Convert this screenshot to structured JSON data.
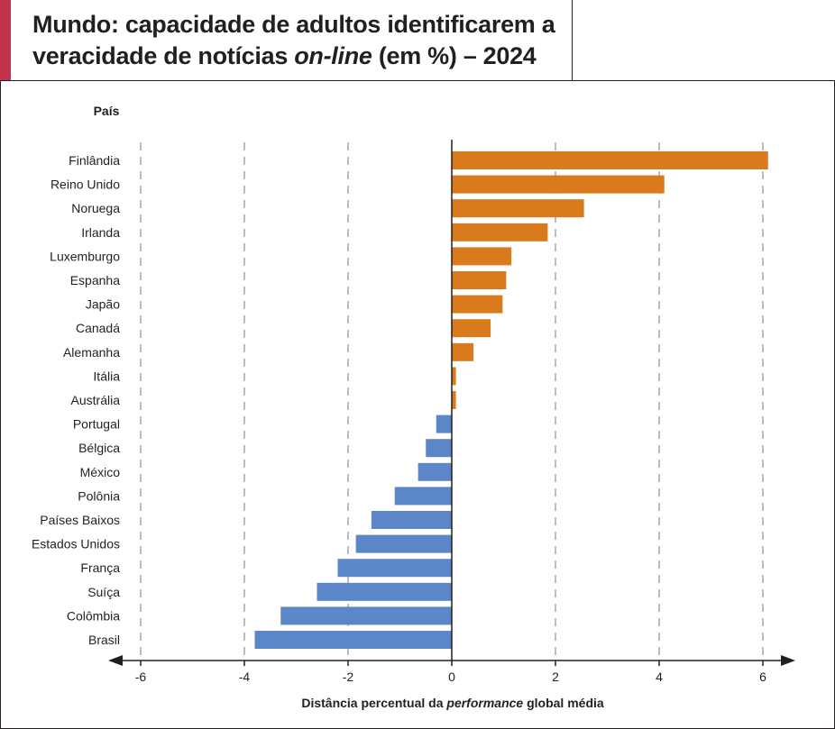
{
  "title": {
    "line1": "Mundo: capacidade de adultos identificarem a",
    "line2_pre": "veracidade de notícias ",
    "line2_em": "on-line",
    "line2_post": " (em %) – 2024"
  },
  "colors": {
    "positive": "#d97a1c",
    "negative": "#5b86c7",
    "accent": "#c2334d",
    "grid": "#bdbdbd",
    "axis": "#231f20"
  },
  "chart_data": {
    "type": "bar",
    "orientation": "horizontal",
    "ylabel": "País",
    "xlabel_pre": "Distância percentual da ",
    "xlabel_em": "performance",
    "xlabel_post": " global média",
    "xlim": [
      -6.3,
      6.5
    ],
    "xticks": [
      -6,
      -4,
      -2,
      0,
      2,
      4,
      6
    ],
    "xtick_labels": [
      "-6",
      "-4",
      "-2",
      "0",
      "2",
      "4",
      "6"
    ],
    "grid": "vertical dashed",
    "categories": [
      "Finlândia",
      "Reino Unido",
      "Noruega",
      "Irlanda",
      "Luxemburgo",
      "Espanha",
      "Japão",
      "Canadá",
      "Alemanha",
      "Itália",
      "Austrália",
      "Portugal",
      "Bélgica",
      "México",
      "Polônia",
      "Países Baixos",
      "Estados Unidos",
      "França",
      "Suíça",
      "Colômbia",
      "Brasil"
    ],
    "values": [
      6.1,
      4.1,
      2.55,
      1.85,
      1.15,
      1.05,
      0.98,
      0.75,
      0.42,
      0.08,
      0.08,
      -0.3,
      -0.5,
      -0.65,
      -1.1,
      -1.55,
      -1.85,
      -2.2,
      -2.6,
      -3.3,
      -3.8
    ]
  }
}
